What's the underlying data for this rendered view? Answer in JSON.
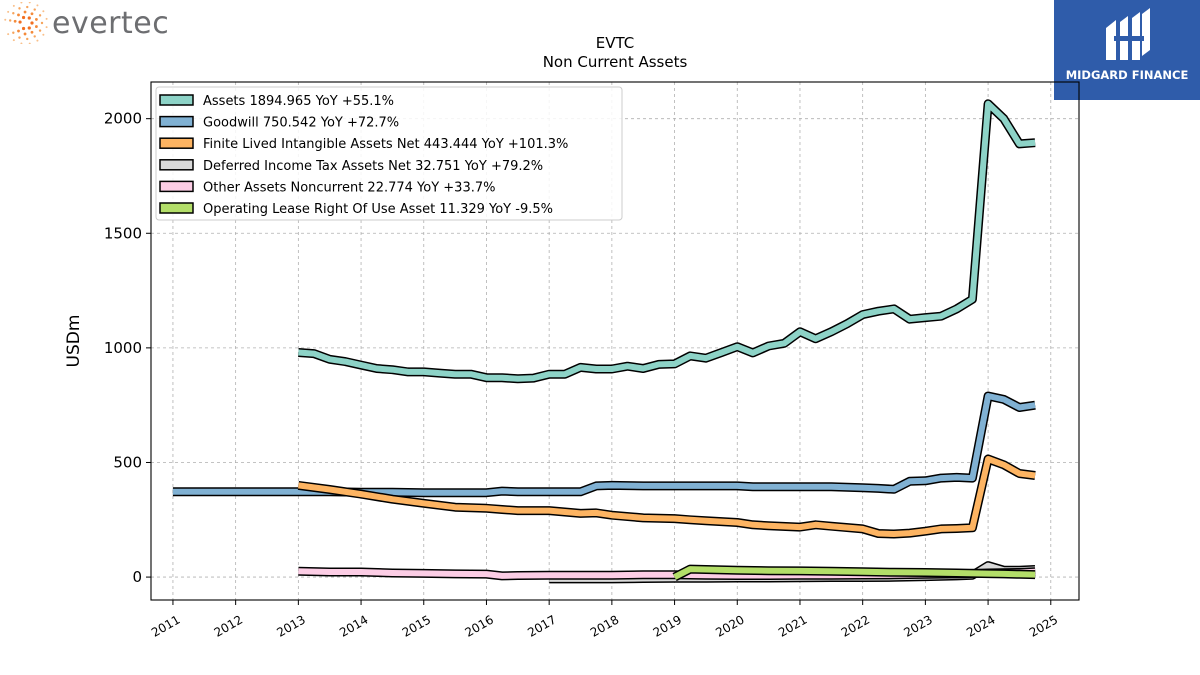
{
  "brand": {
    "left_logo_text": "evertec",
    "right_logo_text": "MIDGARD FINANCE",
    "right_logo_bg": "#2f5caa"
  },
  "chart_data": {
    "type": "line",
    "title": "EVTC",
    "subtitle": "Non Current  Assets",
    "xlabel": "",
    "ylabel": "USDm",
    "xlim": [
      2010.65,
      2025.45
    ],
    "ylim": [
      -100,
      2160
    ],
    "yticks": [
      0,
      500,
      1000,
      1500,
      2000
    ],
    "xticks": [
      "2011",
      "2012",
      "2013",
      "2014",
      "2015",
      "2016",
      "2017",
      "2018",
      "2019",
      "2020",
      "2021",
      "2022",
      "2023",
      "2024",
      "2025"
    ],
    "grid": true,
    "legend_position": "top-left",
    "series": [
      {
        "name": "Assets  1894.965 YoY +55.1%",
        "color": "#8dd3c7",
        "x": [
          2013.0,
          2013.25,
          2013.5,
          2013.75,
          2014.0,
          2014.25,
          2014.5,
          2014.75,
          2015.0,
          2015.25,
          2015.5,
          2015.75,
          2016.0,
          2016.25,
          2016.5,
          2016.75,
          2017.0,
          2017.25,
          2017.5,
          2017.75,
          2018.0,
          2018.25,
          2018.5,
          2018.75,
          2019.0,
          2019.25,
          2019.5,
          2019.75,
          2020.0,
          2020.25,
          2020.5,
          2020.75,
          2021.0,
          2021.25,
          2021.5,
          2021.75,
          2022.0,
          2022.25,
          2022.5,
          2022.75,
          2023.0,
          2023.25,
          2023.5,
          2023.75,
          2024.0,
          2024.25,
          2024.5,
          2024.75
        ],
        "y": [
          980,
          975,
          950,
          940,
          925,
          910,
          905,
          895,
          895,
          890,
          885,
          885,
          870,
          870,
          865,
          868,
          885,
          885,
          915,
          908,
          908,
          920,
          910,
          928,
          930,
          965,
          955,
          980,
          1005,
          978,
          1008,
          1020,
          1070,
          1040,
          1070,
          1105,
          1145,
          1160,
          1170,
          1125,
          1132,
          1138,
          1170,
          1212,
          2065,
          2000,
          1890,
          1895
        ]
      },
      {
        "name": "Goodwill  750.542 YoY +72.7%",
        "color": "#80b1d3",
        "x": [
          2011.0,
          2012.0,
          2013.0,
          2013.5,
          2014.0,
          2014.5,
          2015.0,
          2015.5,
          2016.0,
          2016.25,
          2016.5,
          2017.0,
          2017.5,
          2017.75,
          2018.0,
          2018.5,
          2019.0,
          2019.5,
          2020.0,
          2020.25,
          2020.5,
          2021.0,
          2021.5,
          2022.0,
          2022.25,
          2022.5,
          2022.75,
          2023.0,
          2023.25,
          2023.5,
          2023.75,
          2024.0,
          2024.25,
          2024.5,
          2024.75
        ],
        "y": [
          372,
          372,
          372,
          372,
          370,
          370,
          368,
          368,
          368,
          375,
          372,
          372,
          372,
          398,
          400,
          398,
          398,
          398,
          398,
          394,
          394,
          394,
          394,
          390,
          387,
          383,
          418,
          420,
          432,
          435,
          432,
          790,
          775,
          740,
          750
        ]
      },
      {
        "name": "Finite Lived Intangible Assets Net  443.444 YoY +101.3%",
        "color": "#fdb462",
        "x": [
          2013.0,
          2013.5,
          2014.0,
          2014.5,
          2015.0,
          2015.5,
          2016.0,
          2016.25,
          2016.5,
          2017.0,
          2017.5,
          2017.75,
          2018.0,
          2018.5,
          2019.0,
          2019.25,
          2019.5,
          2020.0,
          2020.25,
          2020.5,
          2021.0,
          2021.25,
          2021.5,
          2022.0,
          2022.25,
          2022.5,
          2022.75,
          2023.0,
          2023.25,
          2023.5,
          2023.75,
          2024.0,
          2024.25,
          2024.5,
          2024.75
        ],
        "y": [
          400,
          382,
          362,
          340,
          322,
          305,
          300,
          295,
          290,
          290,
          278,
          280,
          270,
          258,
          255,
          250,
          246,
          238,
          228,
          224,
          218,
          228,
          222,
          210,
          190,
          188,
          192,
          200,
          210,
          212,
          215,
          515,
          490,
          452,
          443
        ]
      },
      {
        "name": "Deferred Income Tax Assets Net  32.751 YoY +79.2%",
        "color": "#d9d9d9",
        "x": [
          2017.0,
          2017.5,
          2018.0,
          2018.5,
          2019.0,
          2019.5,
          2020.0,
          2020.5,
          2021.0,
          2021.5,
          2022.0,
          2022.5,
          2023.0,
          2023.5,
          2023.75,
          2024.0,
          2024.25,
          2024.5,
          2024.75
        ],
        "y": [
          -8,
          -8,
          -8,
          -6,
          -5,
          -5,
          -4,
          -4,
          -3,
          -2,
          -2,
          -1,
          2,
          5,
          8,
          50,
          30,
          30,
          33
        ]
      },
      {
        "name": "Other Assets Noncurrent  22.774 YoY +33.7%",
        "color": "#fccde5",
        "x": [
          2013.0,
          2013.5,
          2014.0,
          2014.5,
          2015.0,
          2015.5,
          2016.0,
          2016.25,
          2016.5,
          2017.0,
          2017.5,
          2018.0,
          2018.5,
          2019.0,
          2019.5,
          2020.0,
          2020.5,
          2021.0,
          2021.5,
          2022.0,
          2022.5,
          2023.0,
          2023.5,
          2024.0,
          2024.5,
          2024.75
        ],
        "y": [
          25,
          22,
          22,
          18,
          16,
          14,
          13,
          5,
          7,
          8,
          8,
          8,
          10,
          10,
          8,
          7,
          7,
          8,
          8,
          9,
          10,
          12,
          14,
          18,
          20,
          23
        ]
      },
      {
        "name": "Operating Lease Right Of Use Asset  11.329 YoY -9.5%",
        "color": "#b3de69",
        "x": [
          2019.0,
          2019.25,
          2019.5,
          2020.0,
          2020.5,
          2021.0,
          2021.5,
          2022.0,
          2022.5,
          2023.0,
          2023.5,
          2024.0,
          2024.25,
          2024.5,
          2024.75
        ],
        "y": [
          0,
          35,
          33,
          30,
          28,
          27,
          25,
          23,
          21,
          20,
          18,
          15,
          14,
          12,
          11
        ]
      }
    ]
  }
}
